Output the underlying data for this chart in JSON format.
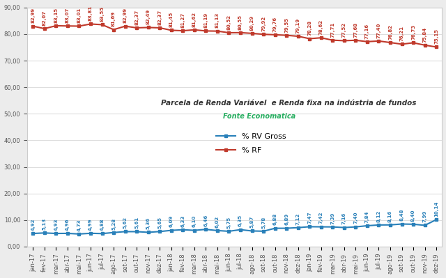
{
  "labels": [
    "jan-17",
    "fev-17",
    "mar-17",
    "abr-17",
    "mai-17",
    "jun-17",
    "jul-17",
    "ago-17",
    "set-17",
    "out-17",
    "nov-17",
    "dez-17",
    "jan-18",
    "fev-18",
    "mar-18",
    "abr-18",
    "mai-18",
    "jun-18",
    "jul-18",
    "ago-18",
    "set-18",
    "out-18",
    "nov-18",
    "dez-18",
    "jan-19",
    "fev-19",
    "mar-19",
    "abr-19",
    "mai-19",
    "jun-19",
    "jul-19",
    "ago-19",
    "set-19",
    "out-19",
    "nov-19",
    "dez-19"
  ],
  "rf": [
    82.99,
    82.07,
    83.15,
    83.07,
    83.01,
    83.81,
    83.55,
    81.69,
    82.99,
    82.37,
    82.49,
    82.37,
    81.45,
    81.27,
    81.62,
    81.19,
    81.13,
    80.52,
    80.55,
    80.29,
    79.92,
    79.76,
    79.55,
    79.19,
    78.28,
    78.62,
    77.71,
    77.52,
    77.68,
    77.16,
    77.4,
    76.82,
    76.21,
    76.73,
    75.84,
    75.15
  ],
  "rv": [
    4.92,
    5.13,
    4.93,
    4.96,
    4.73,
    4.99,
    4.88,
    5.28,
    5.62,
    5.61,
    5.36,
    5.65,
    6.09,
    6.33,
    6.1,
    6.46,
    6.02,
    5.75,
    6.35,
    5.87,
    5.78,
    6.88,
    6.89,
    7.12,
    7.47,
    7.42,
    7.39,
    7.16,
    7.4,
    7.84,
    8.12,
    8.16,
    8.48,
    8.4,
    7.99,
    10.14
  ],
  "rf_color": "#c0392b",
  "rv_color": "#2980b9",
  "bg_color": "#ececec",
  "plot_bg_color": "#ffffff",
  "title": "Parcela de Renda Variável  e Renda fixa na indústria de fundos",
  "subtitle": "Fonte Economatica",
  "subtitle_color": "#27ae60",
  "legend_rv": "% RV Gross",
  "legend_rf": "% RF",
  "ylim": [
    0,
    90
  ],
  "yticks": [
    0,
    10,
    20,
    30,
    40,
    50,
    60,
    70,
    80,
    90
  ],
  "marker_size": 3.5,
  "linewidth": 1.5,
  "annotation_fontsize": 5.0,
  "title_fontsize": 7.5,
  "subtitle_fontsize": 7.0,
  "tick_fontsize": 6.0,
  "legend_fontsize": 8.0
}
